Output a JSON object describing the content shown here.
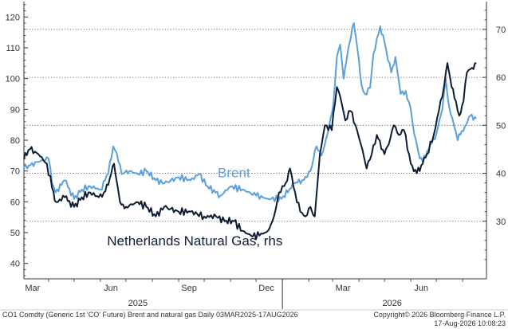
{
  "chart_data": {
    "type": "line",
    "title": "",
    "y_left": {
      "min": 35,
      "max": 125,
      "ticks": [
        40,
        50,
        60,
        70,
        80,
        90,
        100,
        110,
        120
      ]
    },
    "y_right": {
      "min": 18.0,
      "max": 75.8,
      "ticks": [
        30,
        40,
        50,
        60,
        70
      ]
    },
    "x_range": [
      "2025-03-03",
      "2026-08-17"
    ],
    "months": [
      {
        "date": "2025-03-01",
        "label": "Mar"
      },
      {
        "date": "2025-06-01",
        "label": "Jun"
      },
      {
        "date": "2025-09-01",
        "label": "Sep"
      },
      {
        "date": "2025-12-01",
        "label": "Dec"
      },
      {
        "date": "2026-03-01",
        "label": "Mar"
      },
      {
        "date": "2026-06-01",
        "label": "Jun"
      }
    ],
    "years": [
      {
        "date": "2025-07-15",
        "label": "2025"
      },
      {
        "date": "2026-05-10",
        "label": "2026"
      }
    ],
    "year_divider_date": "2026-01-01",
    "dotted_gridlines_right_axis": [
      70,
      60,
      50,
      40,
      30
    ],
    "series": [
      {
        "name": "Brent",
        "axis": "left",
        "color": "#5aa0dc",
        "label_at": {
          "date": "2025-11-05",
          "value": 68
        },
        "points": [
          [
            "2025-03-03",
            71
          ],
          [
            "2025-03-20",
            73
          ],
          [
            "2025-04-01",
            74
          ],
          [
            "2025-04-05",
            66
          ],
          [
            "2025-04-09",
            63
          ],
          [
            "2025-04-20",
            67
          ],
          [
            "2025-05-01",
            61
          ],
          [
            "2025-05-10",
            64
          ],
          [
            "2025-05-20",
            65
          ],
          [
            "2025-06-01",
            64
          ],
          [
            "2025-06-10",
            69
          ],
          [
            "2025-06-16",
            78
          ],
          [
            "2025-06-20",
            76
          ],
          [
            "2025-06-26",
            69
          ],
          [
            "2025-07-05",
            70
          ],
          [
            "2025-07-15",
            69
          ],
          [
            "2025-07-25",
            70
          ],
          [
            "2025-08-05",
            67
          ],
          [
            "2025-08-15",
            66
          ],
          [
            "2025-09-01",
            68
          ],
          [
            "2025-09-15",
            67
          ],
          [
            "2025-09-25",
            69
          ],
          [
            "2025-10-05",
            65
          ],
          [
            "2025-10-20",
            62
          ],
          [
            "2025-11-01",
            65
          ],
          [
            "2025-11-15",
            64
          ],
          [
            "2025-12-01",
            62
          ],
          [
            "2025-12-15",
            61
          ],
          [
            "2025-12-31",
            61
          ],
          [
            "2026-01-15",
            66
          ],
          [
            "2026-01-26",
            67
          ],
          [
            "2026-02-03",
            70
          ],
          [
            "2026-02-10",
            78
          ],
          [
            "2026-02-16",
            75
          ],
          [
            "2026-02-23",
            82
          ],
          [
            "2026-03-02",
            92
          ],
          [
            "2026-03-06",
            107
          ],
          [
            "2026-03-10",
            111
          ],
          [
            "2026-03-14",
            100
          ],
          [
            "2026-03-19",
            109
          ],
          [
            "2026-03-26",
            118
          ],
          [
            "2026-04-01",
            106
          ],
          [
            "2026-04-04",
            98
          ],
          [
            "2026-04-08",
            95
          ],
          [
            "2026-04-14",
            97
          ],
          [
            "2026-04-18",
            108
          ],
          [
            "2026-04-26",
            117
          ],
          [
            "2026-05-01",
            112
          ],
          [
            "2026-05-05",
            106
          ],
          [
            "2026-05-09",
            102
          ],
          [
            "2026-05-14",
            107
          ],
          [
            "2026-05-20",
            95
          ],
          [
            "2026-05-26",
            96
          ],
          [
            "2026-06-01",
            90
          ],
          [
            "2026-06-05",
            82
          ],
          [
            "2026-06-10",
            76
          ],
          [
            "2026-06-15",
            73
          ],
          [
            "2026-06-22",
            77
          ],
          [
            "2026-07-01",
            82
          ],
          [
            "2026-07-08",
            90
          ],
          [
            "2026-07-12",
            100
          ],
          [
            "2026-07-16",
            91
          ],
          [
            "2026-07-20",
            87
          ],
          [
            "2026-07-26",
            80
          ],
          [
            "2026-07-31",
            83
          ],
          [
            "2026-08-05",
            85
          ],
          [
            "2026-08-10",
            88
          ],
          [
            "2026-08-17",
            87
          ]
        ]
      },
      {
        "name": "Netherlands Natural Gas, rhs",
        "axis": "right",
        "color": "#0b1c33",
        "label_at": {
          "date": "2025-09-20",
          "value": 25.0
        },
        "points": [
          [
            "2025-03-03",
            43
          ],
          [
            "2025-03-10",
            45
          ],
          [
            "2025-03-20",
            44
          ],
          [
            "2025-03-30",
            42
          ],
          [
            "2025-04-05",
            37
          ],
          [
            "2025-04-10",
            34
          ],
          [
            "2025-04-20",
            35
          ],
          [
            "2025-05-01",
            33
          ],
          [
            "2025-05-10",
            35
          ],
          [
            "2025-05-20",
            36
          ],
          [
            "2025-05-30",
            35
          ],
          [
            "2025-06-05",
            36
          ],
          [
            "2025-06-12",
            39
          ],
          [
            "2025-06-17",
            42
          ],
          [
            "2025-06-24",
            34
          ],
          [
            "2025-07-01",
            33
          ],
          [
            "2025-07-15",
            34
          ],
          [
            "2025-07-25",
            33
          ],
          [
            "2025-08-05",
            31
          ],
          [
            "2025-08-15",
            33
          ],
          [
            "2025-09-01",
            32
          ],
          [
            "2025-09-15",
            32
          ],
          [
            "2025-10-01",
            31
          ],
          [
            "2025-10-15",
            31
          ],
          [
            "2025-10-25",
            30
          ],
          [
            "2025-11-05",
            30
          ],
          [
            "2025-11-15",
            28
          ],
          [
            "2025-11-25",
            27
          ],
          [
            "2025-12-05",
            27
          ],
          [
            "2025-12-15",
            28
          ],
          [
            "2025-12-22",
            31
          ],
          [
            "2025-12-28",
            36
          ],
          [
            "2026-01-05",
            38
          ],
          [
            "2026-01-10",
            41
          ],
          [
            "2026-01-16",
            36
          ],
          [
            "2026-01-22",
            32
          ],
          [
            "2026-01-28",
            31
          ],
          [
            "2026-02-03",
            33
          ],
          [
            "2026-02-08",
            31
          ],
          [
            "2026-02-14",
            44
          ],
          [
            "2026-02-20",
            50
          ],
          [
            "2026-02-28",
            49
          ],
          [
            "2026-03-06",
            58
          ],
          [
            "2026-03-10",
            56
          ],
          [
            "2026-03-16",
            51
          ],
          [
            "2026-03-22",
            53
          ],
          [
            "2026-03-28",
            50
          ],
          [
            "2026-04-05",
            45
          ],
          [
            "2026-04-10",
            41
          ],
          [
            "2026-04-16",
            44
          ],
          [
            "2026-04-22",
            48
          ],
          [
            "2026-05-01",
            44
          ],
          [
            "2026-05-06",
            46
          ],
          [
            "2026-05-12",
            50
          ],
          [
            "2026-05-18",
            48
          ],
          [
            "2026-05-24",
            49
          ],
          [
            "2026-06-01",
            42
          ],
          [
            "2026-06-08",
            40
          ],
          [
            "2026-06-15",
            42
          ],
          [
            "2026-06-20",
            44
          ],
          [
            "2026-06-28",
            48
          ],
          [
            "2026-07-04",
            53
          ],
          [
            "2026-07-10",
            58
          ],
          [
            "2026-07-14",
            63
          ],
          [
            "2026-07-19",
            58
          ],
          [
            "2026-07-24",
            55
          ],
          [
            "2026-07-28",
            52
          ],
          [
            "2026-08-02",
            55
          ],
          [
            "2026-08-06",
            61
          ],
          [
            "2026-08-12",
            62
          ],
          [
            "2026-08-17",
            63
          ]
        ]
      }
    ]
  },
  "footer": {
    "left": "CO1 Comdty (Generic 1st 'CO' Future) Brent and natural gas Daily 03MAR2025-17AUG2026",
    "right1": "Copyright© 2026 Bloomberg Finance L.P.",
    "right2": "17-Aug-2026 10:08:23"
  }
}
